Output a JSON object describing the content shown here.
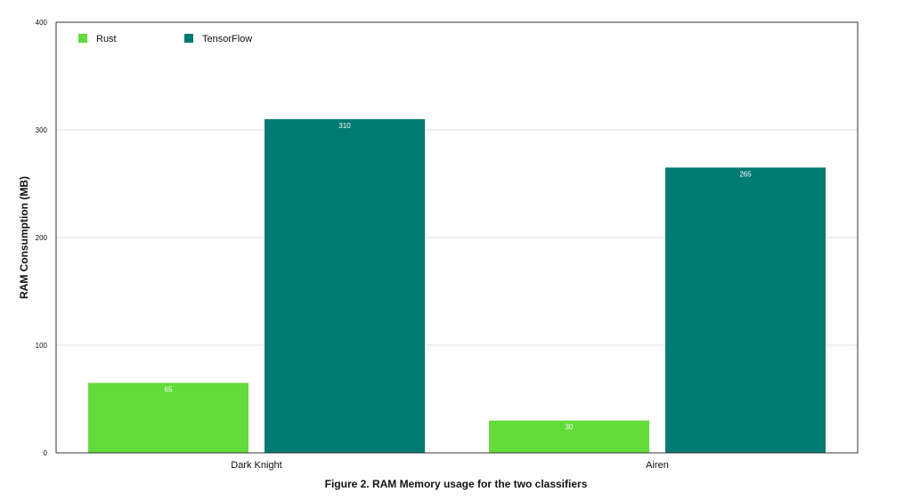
{
  "chart_data": {
    "type": "bar",
    "categories": [
      "Dark Knight",
      "Airen"
    ],
    "series": [
      {
        "name": "Rust",
        "values": [
          65,
          30
        ],
        "color": "#63db3a"
      },
      {
        "name": "TensorFlow",
        "values": [
          310,
          265
        ],
        "color": "#007a72"
      }
    ],
    "ylabel": "RAM Consumption (MB)",
    "xlabel": "",
    "ylim": [
      0,
      400
    ],
    "yticks": [
      0,
      100,
      200,
      300,
      400
    ],
    "grid": true,
    "legend": "top-left",
    "data_labels": true
  },
  "caption": "Figure 2. RAM Memory usage for the two classifiers"
}
